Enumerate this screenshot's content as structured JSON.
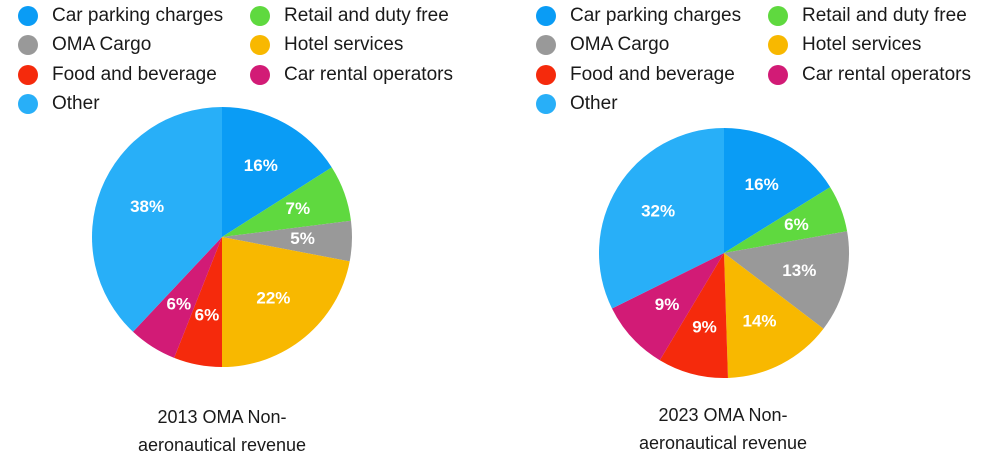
{
  "legend_labels": {
    "car_parking": "Car parking charges",
    "retail": "Retail and duty free",
    "cargo": "OMA Cargo",
    "hotel": "Hotel services",
    "food": "Food and beverage",
    "car_rental": "Car rental operators",
    "other": "Other"
  },
  "colors": {
    "car_parking": "#0a9cf5",
    "retail": "#5fd93f",
    "cargo": "#999999",
    "hotel": "#f8b800",
    "food": "#f52a0c",
    "car_rental": "#d21b76",
    "other": "#28aff8"
  },
  "chart_data": [
    {
      "type": "pie",
      "title_line1": "2013 OMA Non-",
      "title_line2": "aeronautical revenue",
      "slices": [
        {
          "key": "car_parking",
          "value": 16,
          "label": "16%"
        },
        {
          "key": "retail",
          "value": 7,
          "label": "7%"
        },
        {
          "key": "cargo",
          "value": 5,
          "label": "5%"
        },
        {
          "key": "hotel",
          "value": 22,
          "label": "22%"
        },
        {
          "key": "food",
          "value": 6,
          "label": "6%"
        },
        {
          "key": "car_rental",
          "value": 6,
          "label": "6%"
        },
        {
          "key": "other",
          "value": 38,
          "label": "38%"
        }
      ],
      "legend_placement": "top"
    },
    {
      "type": "pie",
      "title_line1": "2023 OMA Non-",
      "title_line2": "aeronautical revenue",
      "slices": [
        {
          "key": "car_parking",
          "value": 16,
          "label": "16%"
        },
        {
          "key": "retail",
          "value": 6,
          "label": "6%"
        },
        {
          "key": "cargo",
          "value": 13,
          "label": "13%"
        },
        {
          "key": "hotel",
          "value": 14,
          "label": "14%"
        },
        {
          "key": "food",
          "value": 9,
          "label": "9%"
        },
        {
          "key": "car_rental",
          "value": 9,
          "label": "9%"
        },
        {
          "key": "other",
          "value": 32,
          "label": "32%"
        }
      ],
      "legend_placement": "top"
    }
  ]
}
